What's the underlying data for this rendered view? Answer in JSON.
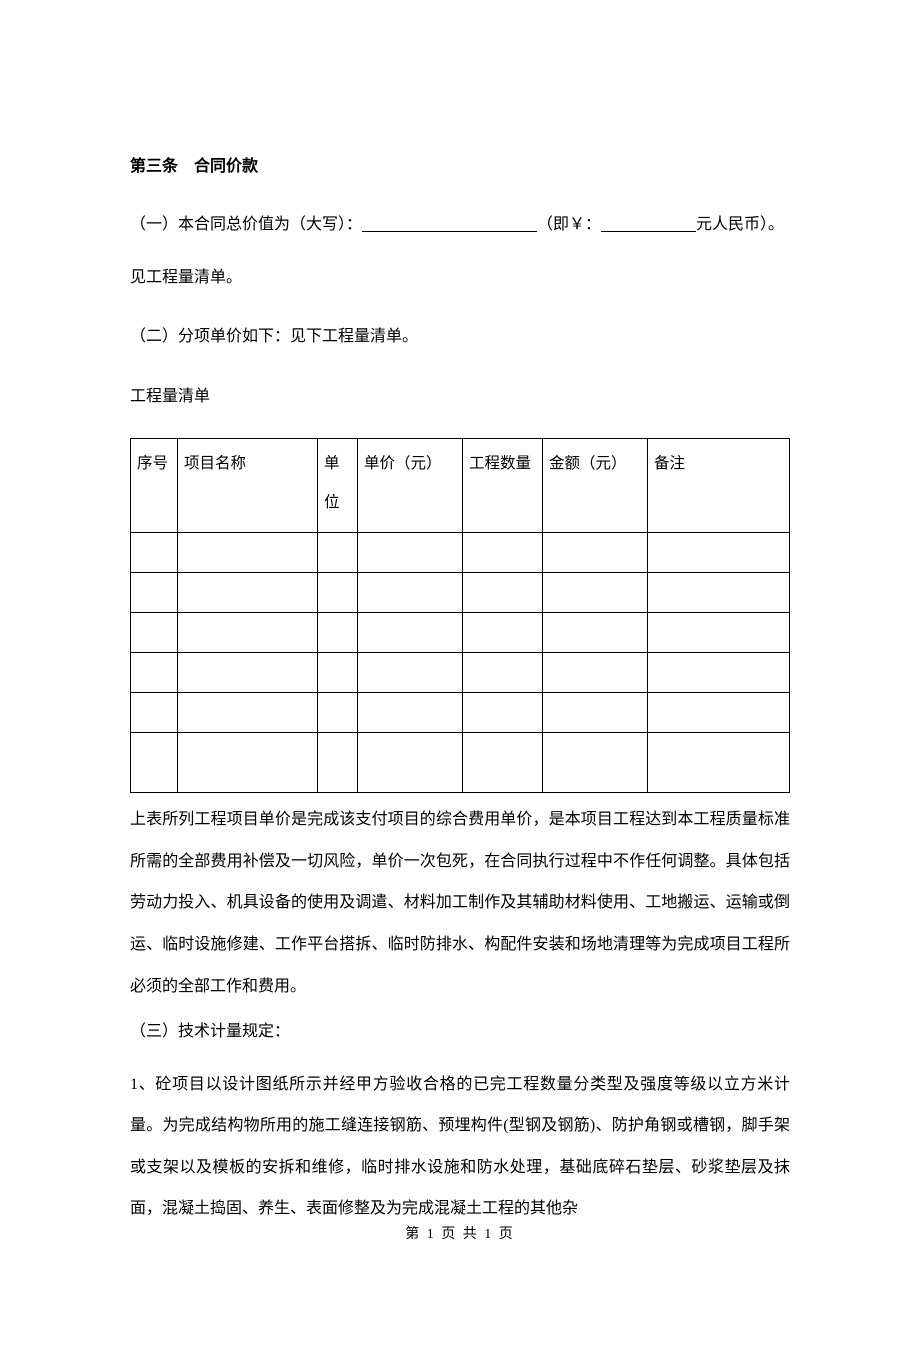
{
  "article": {
    "title": "第三条　合同价款"
  },
  "section1": {
    "prefix": "（一）本合同总价值为（大写）：",
    "mid": "（即￥：",
    "suffix": "元人民币）。",
    "line2": "见工程量清单。"
  },
  "section2": {
    "text": "（二）分项单价如下：见下工程量清单。"
  },
  "tableTitle": "工程量清单",
  "table": {
    "headers": {
      "seq": "序号",
      "name": "项目名称",
      "unit": "单位",
      "price": "单价（元）",
      "qty": "工程数量",
      "amount": "金额（元）",
      "remark": "备注"
    }
  },
  "afterTable": "上表所列工程项目单价是完成该支付项目的综合费用单价，是本项目工程达到本工程质量标准所需的全部费用补偿及一切风险，单价一次包死，在合同执行过程中不作任何调整。具体包括劳动力投入、机具设备的使用及调遣、材料加工制作及其辅助材料使用、工地搬运、运输或倒运、临时设施修建、工作平台搭拆、临时防排水、构配件安装和场地清理等为完成项目工程所必须的全部工作和费用。",
  "section3": {
    "title": "（三）技术计量规定：",
    "item1": "1、砼项目以设计图纸所示并经甲方验收合格的已完工程数量分类型及强度等级以立方米计量。为完成结构物所用的施工缝连接钢筋、预埋构件(型钢及钢筋)、防护角钢或槽钢，脚手架或支架以及模板的安拆和维修，临时排水设施和防水处理，基础底碎石垫层、砂浆垫层及抹面，混凝土捣固、养生、表面修整及为完成混凝土工程的其他杂"
  },
  "footer": {
    "text": "第 1 页 共 1 页"
  }
}
